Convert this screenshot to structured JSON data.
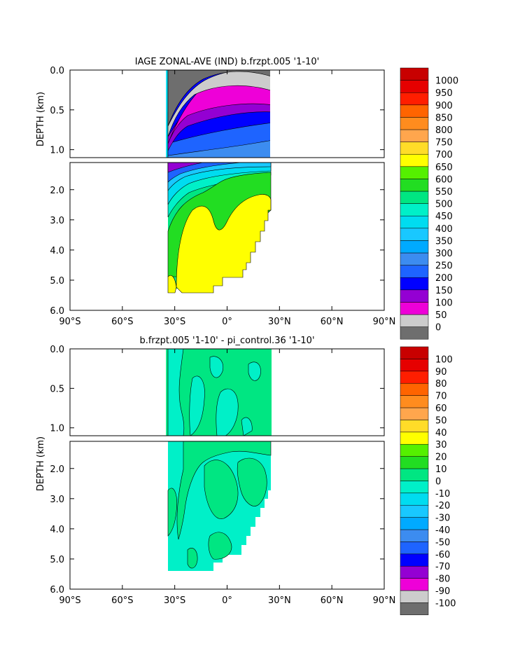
{
  "chart_data": [
    {
      "type": "heatmap",
      "title": "IAGE ZONAL-AVE (IND) b.frzpt.005 '1-10'",
      "ylabel": "DEPTH (km)",
      "xlabel": "",
      "x_ticks": [
        "90°S",
        "60°S",
        "30°S",
        "0°",
        "30°N",
        "60°N",
        "90°N"
      ],
      "y_ticks_top": [
        "0.0",
        "0.5",
        "1.0"
      ],
      "y_ticks_bottom": [
        "2.0",
        "3.0",
        "4.0",
        "5.0",
        "6.0"
      ],
      "xlim": [
        -90,
        90
      ],
      "ylim_top_km": [
        0,
        1.1
      ],
      "ylim_bottom_km": [
        1.1,
        6.0
      ],
      "data_extent_lat": [
        -35,
        25
      ],
      "colorbar": {
        "levels": [
          "0",
          "50",
          "100",
          "150",
          "200",
          "250",
          "300",
          "350",
          "400",
          "450",
          "500",
          "550",
          "600",
          "650",
          "700",
          "750",
          "800",
          "850",
          "900",
          "950",
          "1000"
        ],
        "colors": [
          "#6e6e6e",
          "#cccccc",
          "#ee00d8",
          "#9400d3",
          "#0000ff",
          "#1e64ff",
          "#3c8cf0",
          "#00aaff",
          "#19c8ff",
          "#00dcf0",
          "#00f0c8",
          "#00e682",
          "#22dd22",
          "#55f000",
          "#ffff00",
          "#ffdc28",
          "#ffa64d",
          "#ff8c1e",
          "#ff6400",
          "#ff1e00",
          "#e60000",
          "#c80000"
        ]
      },
      "bands": [
        {
          "level": "0-50",
          "depth_km": [
            0.0,
            0.65
          ]
        },
        {
          "level": "50-100",
          "depth_km": [
            0.3,
            0.85
          ]
        },
        {
          "level": "100-200",
          "depth_km": [
            0.25,
            1.1
          ]
        },
        {
          "level": "200-450",
          "depth_km": [
            0.35,
            1.6
          ]
        },
        {
          "level": "450-550",
          "depth_km": [
            1.4,
            2.8
          ]
        },
        {
          "level": "550-600",
          "depth_km": [
            1.6,
            5.4
          ]
        },
        {
          "level": "600-650",
          "depth_km": [
            2.3,
            5.4
          ]
        }
      ]
    },
    {
      "type": "heatmap",
      "title": "b.frzpt.005 '1-10' - pi_control.36 '1-10'",
      "ylabel": "DEPTH (km)",
      "xlabel": "",
      "x_ticks": [
        "90°S",
        "60°S",
        "30°S",
        "0°",
        "30°N",
        "60°N",
        "90°N"
      ],
      "y_ticks_top": [
        "0.0",
        "0.5",
        "1.0"
      ],
      "y_ticks_bottom": [
        "2.0",
        "3.0",
        "4.0",
        "5.0",
        "6.0"
      ],
      "xlim": [
        -90,
        90
      ],
      "ylim_top_km": [
        0,
        1.1
      ],
      "ylim_bottom_km": [
        1.1,
        6.0
      ],
      "data_extent_lat": [
        -35,
        25
      ],
      "colorbar": {
        "levels": [
          "-100",
          "-90",
          "-80",
          "-70",
          "-60",
          "-50",
          "-40",
          "-30",
          "-20",
          "-10",
          "0",
          "10",
          "20",
          "30",
          "40",
          "50",
          "60",
          "70",
          "80",
          "90",
          "100"
        ],
        "colors": [
          "#6e6e6e",
          "#cccccc",
          "#ee00d8",
          "#9400d3",
          "#0000ff",
          "#1e64ff",
          "#3c8cf0",
          "#00aaff",
          "#19c8ff",
          "#00dcf0",
          "#00f0c8",
          "#00e682",
          "#22dd22",
          "#55f000",
          "#ffff00",
          "#ffdc28",
          "#ffa64d",
          "#ff8c1e",
          "#ff6400",
          "#ff1e00",
          "#e60000",
          "#c80000"
        ]
      },
      "bands": [
        {
          "level": "0-10",
          "depth_km": [
            0.0,
            5.4
          ]
        },
        {
          "level": "-10-0",
          "depth_km": [
            0.0,
            5.4
          ]
        }
      ]
    }
  ]
}
